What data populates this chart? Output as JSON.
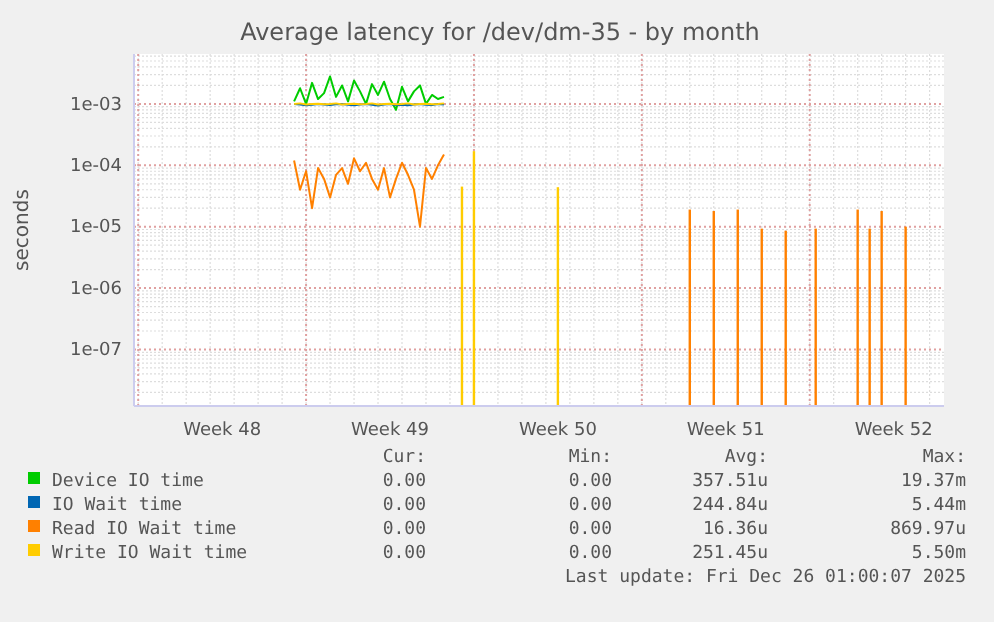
{
  "chart_data": {
    "type": "line",
    "title": "Average latency for /dev/dm-35 - by month",
    "ylabel": "seconds",
    "log": "y",
    "grid": true,
    "legend": "bottom",
    "categories": [
      null,
      null,
      null,
      null,
      null,
      null,
      null,
      null,
      null,
      null,
      null,
      null,
      null,
      null,
      "Week 48",
      null,
      null,
      null,
      null,
      null,
      null,
      null,
      null,
      null,
      null,
      null,
      null,
      null,
      null,
      null,
      null,
      null,
      null,
      null,
      null,
      null,
      null,
      null,
      null,
      null,
      null,
      null,
      "Week 49",
      null,
      null,
      null,
      null,
      null,
      null,
      null,
      null,
      null,
      null,
      null,
      null,
      null,
      null,
      null,
      null,
      null,
      null,
      null,
      null,
      null,
      null,
      null,
      null,
      null,
      null,
      null,
      "Week 50",
      null,
      null,
      null,
      null,
      null,
      null,
      null,
      null,
      null,
      null,
      null,
      null,
      null,
      null,
      null,
      null,
      null,
      null,
      null,
      null,
      null,
      null,
      null,
      null,
      null,
      null,
      null,
      "Week 51",
      null,
      null,
      null,
      null,
      null,
      null,
      null,
      null,
      null,
      null,
      null,
      null,
      null,
      null,
      null,
      null,
      null,
      null,
      null,
      null,
      null,
      null,
      null,
      null,
      null,
      null,
      null,
      "Week 52",
      null,
      null,
      null,
      null,
      null,
      null,
      null,
      null
    ],
    "ylim": [
      1.2e-08,
      0.0065
    ],
    "yticks": [
      {
        "value": 1e-07,
        "label": "1e-07"
      },
      {
        "value": 1e-06,
        "label": "1e-06"
      },
      {
        "value": 1e-05,
        "label": "1e-05"
      },
      {
        "value": 0.0001,
        "label": "1e-04"
      },
      {
        "value": 0.001,
        "label": "1e-03"
      }
    ],
    "series": [
      {
        "name": "Device IO time",
        "color": "#00cc00",
        "values": [
          null,
          null,
          null,
          null,
          null,
          null,
          null,
          null,
          null,
          null,
          null,
          null,
          null,
          null,
          null,
          null,
          null,
          null,
          null,
          null,
          null,
          null,
          null,
          null,
          null,
          null,
          0.0011,
          0.0018,
          0.001,
          0.0022,
          0.0012,
          0.0015,
          0.0028,
          0.0013,
          0.002,
          0.0011,
          0.0024,
          0.0016,
          0.001,
          0.0021,
          0.0014,
          0.0023,
          0.0012,
          0.0008,
          0.0019,
          0.0011,
          0.0016,
          0.002,
          0.001,
          0.0014,
          0.0012,
          0.0013,
          null,
          null,
          null,
          null,
          null,
          null,
          null,
          null,
          null,
          null,
          null,
          null,
          null,
          null,
          null,
          null,
          null,
          null,
          null,
          null,
          null,
          null,
          null,
          null,
          null,
          null,
          null,
          null,
          null,
          null,
          null,
          null,
          null,
          null,
          null,
          null,
          null,
          null,
          null,
          null,
          null,
          null,
          null,
          null,
          null,
          null,
          null,
          null,
          null,
          null,
          null,
          null,
          null,
          null,
          null,
          null,
          null,
          null,
          null,
          null,
          null,
          null,
          null,
          null,
          null,
          null,
          null,
          null,
          null,
          null,
          null,
          null,
          null,
          null,
          null,
          null,
          null,
          null,
          null,
          null,
          null,
          null,
          null
        ]
      },
      {
        "name": "IO Wait time",
        "color": "#0066b3",
        "values": [
          null,
          null,
          null,
          null,
          null,
          null,
          null,
          null,
          null,
          null,
          null,
          null,
          null,
          null,
          null,
          null,
          null,
          null,
          null,
          null,
          null,
          null,
          null,
          null,
          null,
          null,
          0.001,
          0.00098,
          0.00095,
          0.00097,
          0.001,
          0.00098,
          0.00096,
          0.00099,
          0.001,
          0.00097,
          0.00095,
          0.00098,
          0.001,
          0.00097,
          0.00094,
          0.00098,
          0.001,
          0.00096,
          0.00097,
          0.00095,
          0.00098,
          0.001,
          0.00097,
          0.00096,
          0.001,
          0.00098,
          null,
          null,
          null,
          null,
          null,
          null,
          null,
          null,
          null,
          null,
          null,
          null,
          null,
          null,
          null,
          null,
          null,
          null,
          null,
          null,
          null,
          null,
          null,
          null,
          null,
          null,
          null,
          null,
          null,
          null,
          null,
          null,
          null,
          null,
          null,
          null,
          null,
          null,
          null,
          null,
          null,
          null,
          null,
          null,
          null,
          null,
          null,
          null,
          null,
          null,
          null,
          null,
          null,
          null,
          null,
          null,
          null,
          null,
          null,
          null,
          null,
          null,
          null,
          null,
          null,
          null,
          null,
          null,
          null,
          null,
          null,
          null,
          null,
          null,
          null,
          null,
          null,
          null,
          null,
          null,
          null,
          null,
          null
        ]
      },
      {
        "name": "Read IO Wait time",
        "color": "#ff8000",
        "values": [
          null,
          null,
          null,
          null,
          null,
          null,
          null,
          null,
          null,
          null,
          null,
          null,
          null,
          null,
          null,
          null,
          null,
          null,
          null,
          null,
          null,
          null,
          null,
          null,
          null,
          null,
          0.00012,
          4e-05,
          8e-05,
          2e-05,
          9e-05,
          6e-05,
          3e-05,
          7e-05,
          9e-05,
          5e-05,
          0.00013,
          8e-05,
          0.00011,
          6e-05,
          4e-05,
          9e-05,
          3e-05,
          6e-05,
          0.00011,
          7e-05,
          4e-05,
          1e-05,
          9e-05,
          6e-05,
          0.0001,
          0.00015,
          null,
          null,
          null,
          null,
          null,
          null,
          null,
          null,
          null,
          null,
          null,
          null,
          null,
          null,
          null,
          null,
          null,
          null,
          null,
          null,
          null,
          null,
          null,
          null,
          null,
          null,
          null,
          null,
          null,
          null,
          null,
          null,
          null,
          null,
          null,
          null,
          null,
          null,
          null,
          null,
          null,
          null,
          null,
          null,
          null,
          null,
          null,
          null,
          null,
          null,
          null,
          null,
          null,
          null,
          null,
          null,
          null,
          null,
          null,
          null,
          null,
          null,
          null,
          null,
          null,
          null,
          null,
          null,
          null,
          null,
          null,
          null,
          null,
          null,
          null,
          null,
          null,
          null,
          null,
          null,
          null,
          null,
          null
        ]
      },
      {
        "name": "Write IO Wait time",
        "color": "#ffcc00",
        "values": [
          null,
          null,
          null,
          null,
          null,
          null,
          null,
          null,
          null,
          null,
          null,
          null,
          null,
          null,
          null,
          null,
          null,
          null,
          null,
          null,
          null,
          null,
          null,
          null,
          null,
          null,
          0.001,
          0.00102,
          0.00098,
          0.001,
          0.00101,
          0.00099,
          0.001,
          0.00102,
          0.00098,
          0.001,
          0.00101,
          0.00099,
          0.001,
          0.00102,
          0.00098,
          0.001,
          0.00101,
          0.00099,
          0.001,
          0.00102,
          0.00098,
          0.001,
          0.00101,
          0.00099,
          0.001,
          0.00102,
          null,
          null,
          null,
          null,
          null,
          null,
          null,
          null,
          null,
          null,
          null,
          null,
          null,
          null,
          null,
          null,
          null,
          null,
          null,
          null,
          null,
          null,
          null,
          null,
          null,
          null,
          null,
          null,
          null,
          null,
          null,
          null,
          null,
          null,
          null,
          null,
          null,
          null,
          null,
          null,
          null,
          null,
          null,
          null,
          null,
          null,
          null,
          null,
          null,
          null,
          null,
          null,
          null,
          null,
          null,
          null,
          null,
          null,
          null,
          null,
          null,
          null,
          null,
          null,
          null,
          null,
          null,
          null,
          null,
          null,
          null,
          null,
          null,
          null,
          null,
          null,
          null,
          null,
          null,
          null,
          null,
          null,
          null
        ]
      },
      {
        "type": "bar",
        "color": "#ff8000",
        "values": [
          null,
          null,
          null,
          null,
          null,
          null,
          null,
          null,
          null,
          null,
          null,
          null,
          null,
          null,
          null,
          null,
          null,
          null,
          null,
          null,
          null,
          null,
          null,
          null,
          null,
          null,
          null,
          null,
          null,
          null,
          null,
          null,
          null,
          null,
          null,
          null,
          null,
          null,
          null,
          null,
          null,
          null,
          null,
          null,
          null,
          null,
          null,
          null,
          null,
          null,
          null,
          null,
          null,
          null,
          null,
          null,
          null,
          null,
          null,
          null,
          null,
          null,
          null,
          null,
          null,
          null,
          null,
          null,
          null,
          null,
          null,
          null,
          null,
          null,
          null,
          null,
          null,
          null,
          null,
          null,
          null,
          null,
          null,
          null,
          null,
          null,
          null,
          null,
          null,
          null,
          null,
          null,
          1.9e-05,
          null,
          null,
          null,
          1.8e-05,
          null,
          null,
          null,
          1.9e-05,
          null,
          null,
          null,
          9.3e-06,
          null,
          null,
          null,
          8.6e-06,
          null,
          null,
          null,
          null,
          9.3e-06,
          null,
          null,
          null,
          null,
          null,
          null,
          1.9e-05,
          null,
          9.3e-06,
          null,
          1.8e-05,
          null,
          null,
          null,
          1e-05,
          null,
          null,
          null,
          null,
          null,
          null
        ]
      },
      {
        "type": "bar",
        "color": "#ffcc00",
        "values": [
          null,
          null,
          null,
          null,
          null,
          null,
          null,
          null,
          null,
          null,
          null,
          null,
          null,
          null,
          null,
          null,
          null,
          null,
          null,
          null,
          null,
          null,
          null,
          null,
          null,
          null,
          null,
          null,
          null,
          null,
          null,
          null,
          null,
          null,
          null,
          null,
          null,
          null,
          null,
          null,
          null,
          null,
          null,
          null,
          null,
          null,
          null,
          null,
          null,
          null,
          null,
          null,
          null,
          null,
          4.5e-05,
          null,
          0.00017,
          null,
          null,
          null,
          null,
          null,
          null,
          null,
          null,
          null,
          null,
          null,
          null,
          null,
          4.4e-05,
          null,
          null,
          null,
          null,
          null,
          null,
          null,
          null,
          null,
          null,
          null,
          null,
          null,
          null,
          null,
          null,
          null,
          null,
          null,
          null,
          null,
          null,
          null,
          null,
          null,
          null,
          null,
          null,
          null,
          null,
          null,
          null,
          null,
          null,
          null,
          null,
          null,
          null,
          null,
          null,
          null,
          null,
          null,
          null,
          null,
          null,
          null,
          null,
          null,
          null,
          null,
          null,
          null,
          null,
          null,
          null,
          null,
          null,
          null,
          null,
          null,
          null,
          null,
          null
        ]
      }
    ],
    "annotations": [
      "Cur:",
      "Min:",
      "Avg:",
      "Max:",
      "0.00",
      "0.00",
      "357.51u",
      "19.37m",
      "0.00",
      "0.00",
      "244.84u",
      "5.44m",
      "0.00",
      "0.00",
      "16.36u",
      "869.97u",
      "0.00",
      "0.00",
      "251.45u",
      "5.50m",
      "Last update: Fri Dec 26 01:00:07 2025"
    ]
  }
}
